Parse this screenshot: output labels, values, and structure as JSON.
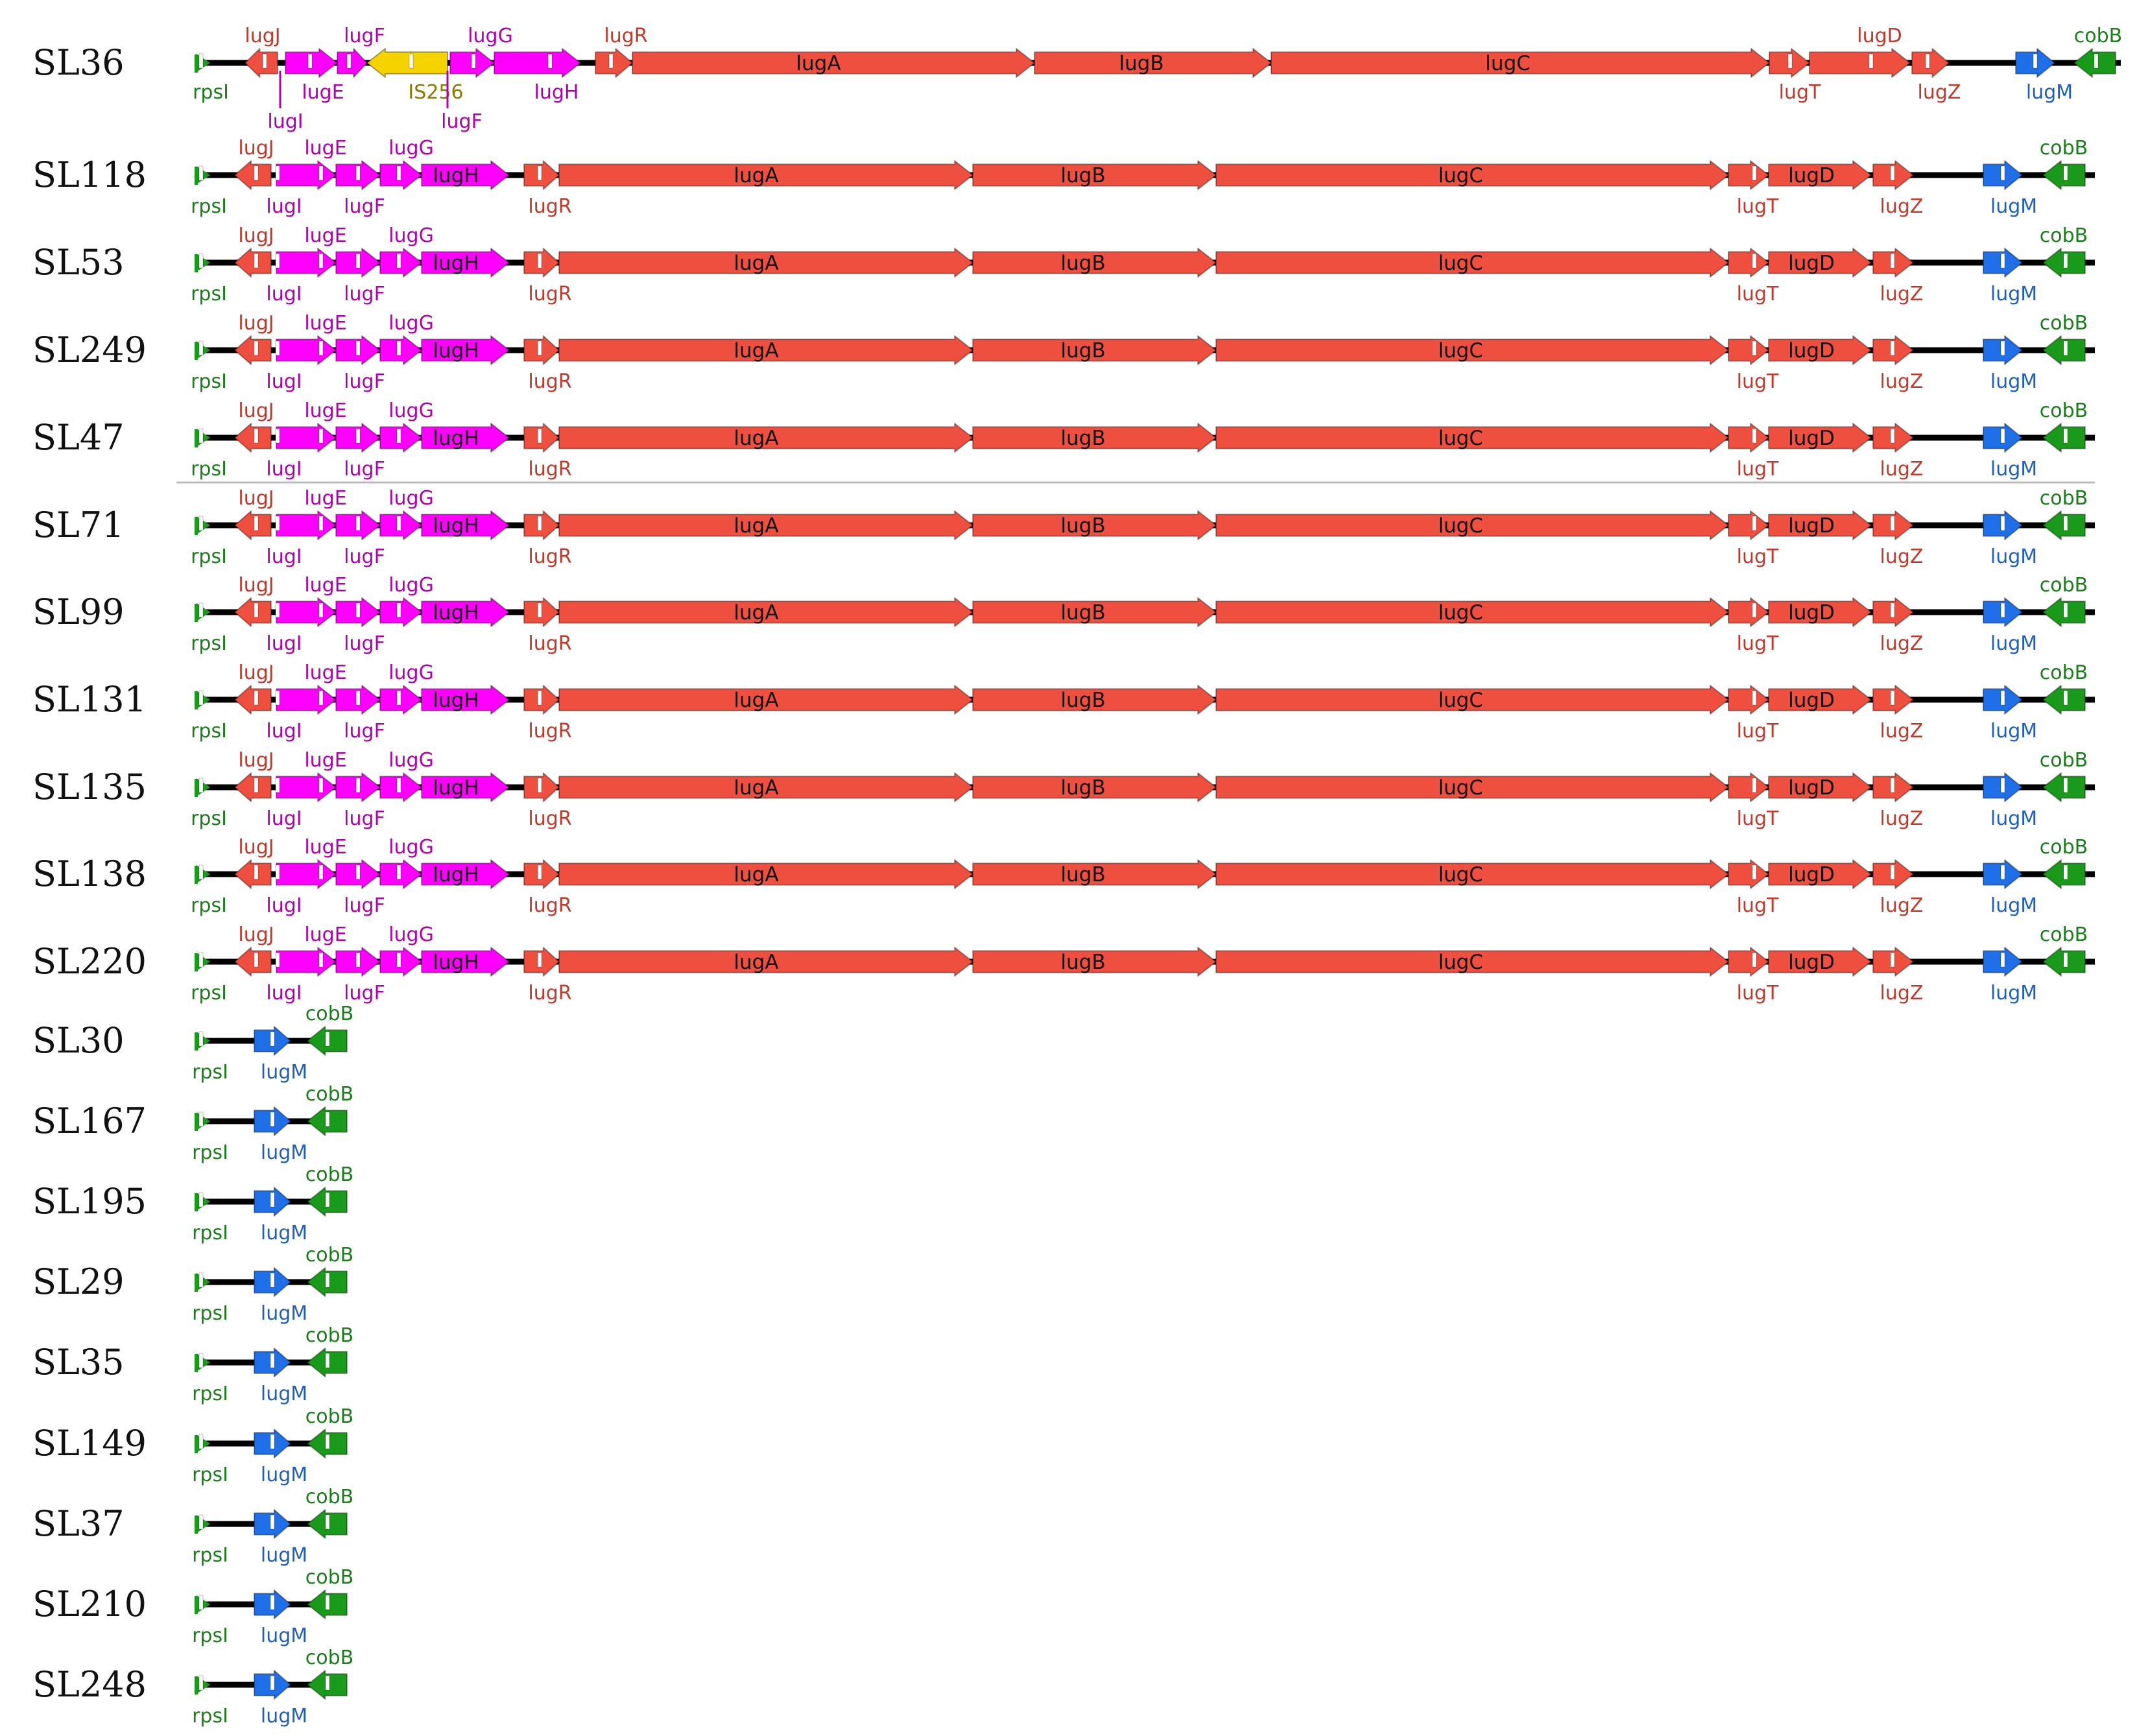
{
  "colors": {
    "red": "#ee4f3f",
    "red_label": "#c0392b",
    "magenta": "#ff00ff",
    "magenta_label": "#b000b0",
    "yellow": "#f5d300",
    "yellow_label": "#8a7a00",
    "blue": "#1f6fe8",
    "blue_label": "#1f5fbf",
    "green": "#1a9a1a",
    "green_label": "#1a7f1a",
    "backbone": "#000000",
    "separator": "#bbbbbb"
  },
  "labels": {
    "rpsI": "rpsI",
    "lugJ": "lugJ",
    "lugI": "lugI",
    "lugE": "lugE",
    "lugF": "lugF",
    "IS256": "IS256",
    "lugG": "lugG",
    "lugH": "lugH",
    "lugR": "lugR",
    "lugA": "lugA",
    "lugB": "lugB",
    "lugC": "lugC",
    "lugT": "lugT",
    "lugD": "lugD",
    "lugZ": "lugZ",
    "lugM": "lugM",
    "cobB": "cobB"
  },
  "rows": [
    {
      "name": "SL36",
      "type": "is"
    },
    {
      "name": "SL118",
      "type": "full"
    },
    {
      "name": "SL53",
      "type": "full"
    },
    {
      "name": "SL249",
      "type": "full"
    },
    {
      "name": "SL47",
      "type": "full"
    },
    {
      "name": "SL71",
      "type": "full"
    },
    {
      "name": "SL99",
      "type": "full"
    },
    {
      "name": "SL131",
      "type": "full"
    },
    {
      "name": "SL135",
      "type": "full"
    },
    {
      "name": "SL138",
      "type": "full"
    },
    {
      "name": "SL220",
      "type": "full"
    },
    {
      "name": "SL30",
      "type": "short"
    },
    {
      "name": "SL167",
      "type": "short"
    },
    {
      "name": "SL195",
      "type": "short"
    },
    {
      "name": "SL29",
      "type": "short"
    },
    {
      "name": "SL35",
      "type": "short"
    },
    {
      "name": "SL149",
      "type": "short"
    },
    {
      "name": "SL37",
      "type": "short"
    },
    {
      "name": "SL210",
      "type": "short"
    },
    {
      "name": "SL248",
      "type": "short"
    }
  ]
}
